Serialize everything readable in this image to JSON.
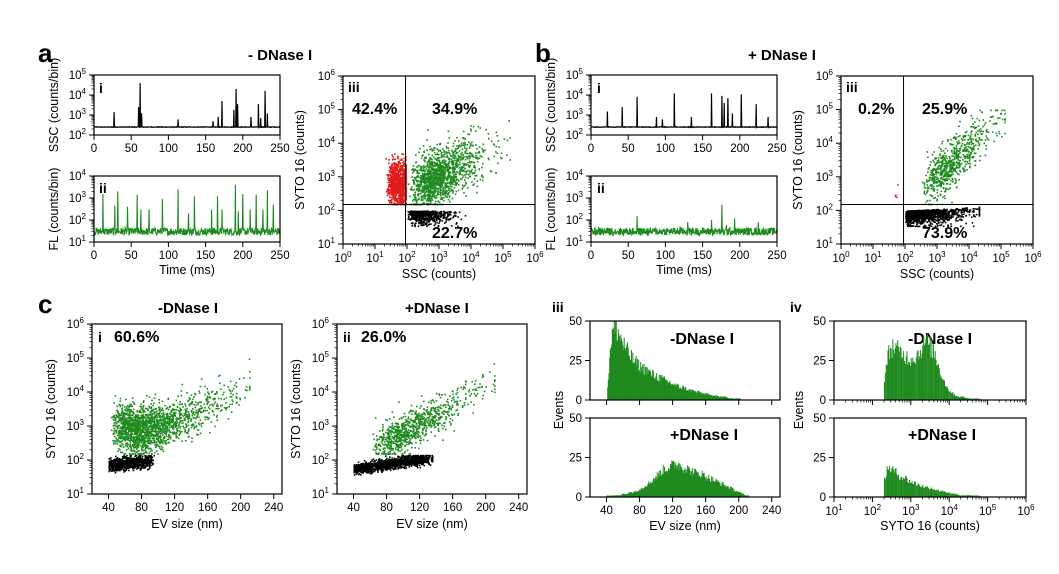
{
  "figure": {
    "panel_a": "a",
    "panel_b": "b",
    "panel_c": "c",
    "title_a": "- DNase I",
    "title_b": "+ DNase I",
    "title_c_i": "-DNase I",
    "title_c_ii": "+DNase I",
    "roman_i": "i",
    "roman_ii": "ii",
    "roman_iii": "iii",
    "roman_iv": "iv",
    "pct_a_tl": "42.4%",
    "pct_a_tr": "34.9%",
    "pct_a_br": "22.7%",
    "pct_b_tl": "0.2%",
    "pct_b_tr": "25.9%",
    "pct_b_br": "73.9%",
    "pct_c_i": "60.6%",
    "pct_c_ii": "26.0%",
    "hist_minus": "-DNase I",
    "hist_plus": "+DNase I"
  },
  "colors": {
    "green": "#1f8a1f",
    "red": "#e01b1b",
    "black": "#000000"
  },
  "chart_data": [
    {
      "id": "a-i",
      "type": "line",
      "xlabel": "",
      "ylabel": "SSC (counts/bin)",
      "xlim": [
        0,
        250
      ],
      "ylim": [
        100,
        100000
      ],
      "yscale": "log",
      "color": "black",
      "baseline": 250,
      "spikes": [
        [
          27,
          1400
        ],
        [
          60,
          2500
        ],
        [
          62,
          40000
        ],
        [
          64,
          1200
        ],
        [
          113,
          600
        ],
        [
          160,
          500
        ],
        [
          167,
          800
        ],
        [
          172,
          5000
        ],
        [
          188,
          1800
        ],
        [
          191,
          20000
        ],
        [
          193,
          3500
        ],
        [
          211,
          800
        ],
        [
          221,
          3500
        ],
        [
          224,
          700
        ],
        [
          230,
          16000
        ],
        [
          233,
          1200
        ]
      ]
    },
    {
      "id": "a-ii",
      "type": "line",
      "xlabel": "Time (ms)",
      "ylabel": "FL (counts/bin)",
      "xlim": [
        0,
        250
      ],
      "ylim": [
        10,
        10000
      ],
      "yscale": "log",
      "color": "green",
      "baseline": 30,
      "spikes": [
        [
          12,
          1500
        ],
        [
          28,
          450
        ],
        [
          32,
          2000
        ],
        [
          45,
          400
        ],
        [
          58,
          1400
        ],
        [
          63,
          300
        ],
        [
          74,
          300
        ],
        [
          92,
          900
        ],
        [
          113,
          2500
        ],
        [
          127,
          200
        ],
        [
          135,
          1200
        ],
        [
          158,
          300
        ],
        [
          166,
          1200
        ],
        [
          172,
          300
        ],
        [
          190,
          4000
        ],
        [
          194,
          250
        ],
        [
          200,
          1500
        ],
        [
          210,
          300
        ],
        [
          218,
          1400
        ],
        [
          227,
          300
        ],
        [
          233,
          2200
        ],
        [
          241,
          500
        ]
      ]
    },
    {
      "id": "a-iii",
      "type": "scatter",
      "xlabel": "SSC (counts)",
      "ylabel": "SYTO 16 (counts)",
      "xlim": [
        1,
        1000000
      ],
      "ylim": [
        10,
        1000000
      ],
      "xscale": "log",
      "yscale": "log",
      "gate_x": 90,
      "gate_y": 150
    },
    {
      "id": "b-i",
      "type": "line",
      "xlabel": "",
      "ylabel": "SSC (counts/bin)",
      "xlim": [
        0,
        250
      ],
      "ylim": [
        100,
        100000
      ],
      "yscale": "log",
      "color": "black",
      "baseline": 250,
      "spikes": [
        [
          22,
          1500
        ],
        [
          42,
          2500
        ],
        [
          62,
          8000
        ],
        [
          88,
          800
        ],
        [
          96,
          600
        ],
        [
          112,
          12000
        ],
        [
          135,
          800
        ],
        [
          162,
          12000
        ],
        [
          176,
          9000
        ],
        [
          179,
          4000
        ],
        [
          184,
          7000
        ],
        [
          190,
          1200
        ],
        [
          202,
          11000
        ],
        [
          222,
          3500
        ],
        [
          238,
          800
        ]
      ]
    },
    {
      "id": "b-ii",
      "type": "line",
      "xlabel": "Time (ms)",
      "ylabel": "FL (counts/bin)",
      "xlim": [
        0,
        250
      ],
      "ylim": [
        10,
        10000
      ],
      "yscale": "log",
      "color": "green",
      "baseline": 30,
      "spikes": [
        [
          62,
          150
        ],
        [
          120,
          50
        ],
        [
          130,
          80
        ],
        [
          162,
          100
        ],
        [
          176,
          500
        ],
        [
          182,
          60
        ],
        [
          193,
          120
        ],
        [
          225,
          80
        ]
      ]
    },
    {
      "id": "b-iii",
      "type": "scatter",
      "xlabel": "SSC (counts)",
      "ylabel": "SYTO 16 (counts)",
      "xlim": [
        1,
        1000000
      ],
      "ylim": [
        10,
        1000000
      ],
      "xscale": "log",
      "yscale": "log",
      "gate_x": 90,
      "gate_y": 150
    },
    {
      "id": "c-i",
      "type": "scatter",
      "xlabel": "EV size (nm)",
      "ylabel": "SYTO 16 (counts)",
      "xlim": [
        20,
        250
      ],
      "ylim": [
        10,
        1000000
      ],
      "yscale": "log",
      "xticks": [
        40,
        80,
        120,
        160,
        200,
        240
      ]
    },
    {
      "id": "c-ii",
      "type": "scatter",
      "xlabel": "EV size (nm)",
      "ylabel": "SYTO 16 (counts)",
      "xlim": [
        20,
        250
      ],
      "ylim": [
        10,
        1000000
      ],
      "yscale": "log",
      "xticks": [
        40,
        80,
        120,
        160,
        200,
        240
      ]
    },
    {
      "id": "c-iii-top",
      "type": "bar",
      "xlabel": "",
      "ylabel": "Events",
      "xlim": [
        20,
        250
      ],
      "ylim": [
        0,
        50
      ],
      "bin_width": 2,
      "x": [
        40,
        44,
        48,
        52,
        56,
        60,
        64,
        68,
        72,
        76,
        80,
        84,
        88,
        92,
        96,
        100,
        104,
        108,
        112,
        116,
        120,
        124,
        128,
        132,
        136,
        140,
        144,
        148,
        152,
        156,
        160,
        164,
        168,
        172,
        176,
        180,
        184,
        188,
        192,
        196,
        200,
        204,
        208
      ],
      "values": [
        0,
        34,
        46,
        44,
        40,
        35,
        31,
        28,
        25,
        23,
        21,
        20,
        19,
        17,
        16,
        15,
        14,
        13,
        12,
        11,
        10,
        9,
        8,
        8,
        7,
        6,
        6,
        5,
        5,
        4,
        4,
        3,
        3,
        3,
        2,
        2,
        2,
        1,
        1,
        1,
        1,
        0,
        0
      ]
    },
    {
      "id": "c-iii-bottom",
      "type": "bar",
      "xlabel": "EV size (nm)",
      "ylabel": "",
      "xlim": [
        20,
        250
      ],
      "ylim": [
        0,
        50
      ],
      "bin_width": 2,
      "x": [
        40,
        44,
        48,
        52,
        56,
        60,
        64,
        68,
        72,
        76,
        80,
        84,
        88,
        92,
        96,
        100,
        104,
        108,
        112,
        116,
        120,
        124,
        128,
        132,
        136,
        140,
        144,
        148,
        152,
        156,
        160,
        164,
        168,
        172,
        176,
        180,
        184,
        188,
        192,
        196,
        200,
        204,
        208,
        212
      ],
      "values": [
        1,
        1,
        1,
        1,
        1,
        2,
        2,
        3,
        3,
        4,
        5,
        6,
        8,
        9,
        11,
        13,
        15,
        17,
        18,
        19,
        20,
        21,
        20,
        19,
        18,
        17,
        16,
        15,
        15,
        14,
        13,
        12,
        11,
        10,
        9,
        8,
        7,
        6,
        5,
        4,
        3,
        2,
        1,
        1
      ]
    },
    {
      "id": "c-iv-top",
      "type": "bar",
      "xlabel": "",
      "ylabel": "Events",
      "xlim": [
        10,
        1000000
      ],
      "xscale": "log",
      "ylim": [
        0,
        50
      ],
      "x": [
        200,
        260,
        330,
        420,
        540,
        700,
        900,
        1150,
        1500,
        1900,
        2400,
        3100,
        4000,
        5100,
        6600,
        8500,
        11000,
        14000,
        18000,
        23000,
        30000,
        40000,
        55000,
        75000,
        100000
      ],
      "values": [
        14,
        30,
        34,
        32,
        30,
        28,
        26,
        27,
        29,
        33,
        38,
        34,
        30,
        22,
        14,
        8,
        5,
        3,
        2,
        2,
        1,
        1,
        1,
        0,
        0
      ]
    },
    {
      "id": "c-iv-bottom",
      "type": "bar",
      "xlabel": "SYTO 16 (counts)",
      "ylabel": "",
      "xlim": [
        10,
        1000000
      ],
      "xscale": "log",
      "ylim": [
        0,
        50
      ],
      "x": [
        200,
        260,
        330,
        420,
        540,
        700,
        900,
        1150,
        1500,
        1900,
        2400,
        3100,
        4000,
        5100,
        6600,
        8500,
        11000,
        14000,
        18000,
        23000,
        30000,
        40000,
        55000,
        75000,
        100000
      ],
      "values": [
        12,
        19,
        17,
        15,
        13,
        12,
        10,
        9,
        8,
        7,
        6,
        6,
        5,
        4,
        4,
        3,
        2,
        2,
        1,
        1,
        1,
        1,
        1,
        0,
        0
      ]
    }
  ]
}
